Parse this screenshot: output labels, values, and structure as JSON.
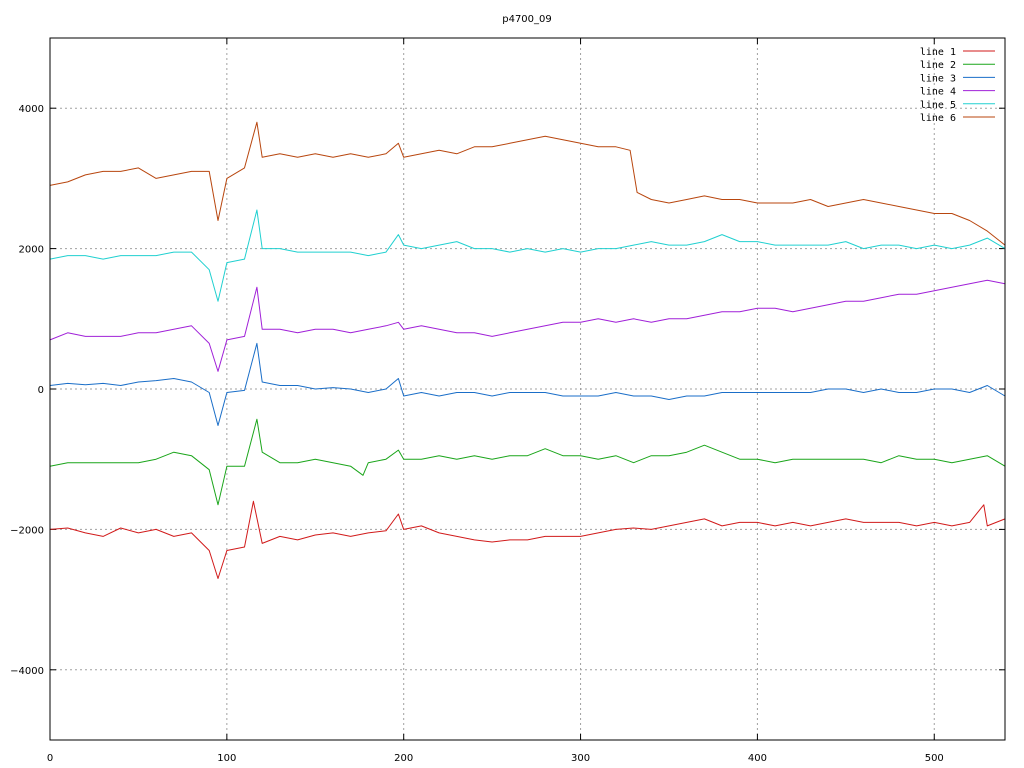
{
  "chart_data": {
    "type": "line",
    "title": "p4700_09",
    "xlabel": "",
    "ylabel": "",
    "xlim": [
      0,
      540
    ],
    "ylim": [
      -5000,
      5000
    ],
    "xticks": [
      0,
      100,
      200,
      300,
      400,
      500
    ],
    "yticks": [
      -4000,
      -2000,
      0,
      2000,
      4000
    ],
    "grid": true,
    "legend_position": "top-right",
    "series": [
      {
        "name": "line 1",
        "color": "#d11a1a",
        "x": [
          0,
          10,
          20,
          30,
          40,
          50,
          60,
          70,
          80,
          90,
          95,
          100,
          110,
          115,
          120,
          130,
          140,
          150,
          160,
          170,
          180,
          190,
          197,
          200,
          210,
          220,
          230,
          240,
          250,
          260,
          270,
          280,
          290,
          300,
          310,
          320,
          330,
          340,
          350,
          360,
          370,
          380,
          390,
          400,
          410,
          420,
          430,
          440,
          450,
          460,
          470,
          480,
          490,
          500,
          510,
          520,
          528,
          530,
          540
        ],
        "y": [
          -2000,
          -1980,
          -2050,
          -2100,
          -1980,
          -2050,
          -2000,
          -2100,
          -2050,
          -2300,
          -2700,
          -2300,
          -2250,
          -1600,
          -2200,
          -2100,
          -2150,
          -2080,
          -2050,
          -2100,
          -2050,
          -2020,
          -1780,
          -2000,
          -1950,
          -2050,
          -2100,
          -2150,
          -2180,
          -2150,
          -2150,
          -2100,
          -2100,
          -2100,
          -2050,
          -2000,
          -1980,
          -2000,
          -1950,
          -1900,
          -1850,
          -1950,
          -1900,
          -1900,
          -1950,
          -1900,
          -1950,
          -1900,
          -1850,
          -1900,
          -1900,
          -1900,
          -1950,
          -1900,
          -1950,
          -1900,
          -1650,
          -1950,
          -1850
        ]
      },
      {
        "name": "line 2",
        "color": "#1aa51a",
        "x": [
          0,
          10,
          20,
          30,
          40,
          50,
          60,
          70,
          80,
          90,
          95,
          100,
          110,
          117,
          120,
          130,
          140,
          150,
          160,
          170,
          177,
          180,
          190,
          197,
          200,
          210,
          220,
          230,
          240,
          250,
          260,
          270,
          280,
          290,
          300,
          310,
          320,
          330,
          340,
          350,
          360,
          370,
          380,
          390,
          400,
          410,
          420,
          430,
          440,
          450,
          460,
          470,
          480,
          490,
          500,
          510,
          520,
          530,
          540
        ],
        "y": [
          -1100,
          -1050,
          -1050,
          -1050,
          -1050,
          -1050,
          -1000,
          -900,
          -950,
          -1150,
          -1650,
          -1100,
          -1100,
          -430,
          -900,
          -1050,
          -1050,
          -1000,
          -1050,
          -1100,
          -1230,
          -1050,
          -1000,
          -870,
          -1000,
          -1000,
          -950,
          -1000,
          -950,
          -1000,
          -950,
          -950,
          -850,
          -950,
          -950,
          -1000,
          -950,
          -1050,
          -950,
          -950,
          -900,
          -800,
          -900,
          -1000,
          -1000,
          -1050,
          -1000,
          -1000,
          -1000,
          -1000,
          -1000,
          -1050,
          -950,
          -1000,
          -1000,
          -1050,
          -1000,
          -950,
          -1100
        ]
      },
      {
        "name": "line 3",
        "color": "#1a6ec8",
        "x": [
          0,
          10,
          20,
          30,
          40,
          50,
          60,
          70,
          80,
          90,
          95,
          100,
          110,
          117,
          120,
          130,
          140,
          150,
          160,
          170,
          180,
          190,
          197,
          200,
          210,
          220,
          230,
          240,
          250,
          260,
          270,
          280,
          290,
          300,
          310,
          320,
          330,
          340,
          350,
          360,
          370,
          380,
          390,
          400,
          410,
          420,
          430,
          440,
          450,
          460,
          470,
          480,
          490,
          500,
          510,
          520,
          530,
          540
        ],
        "y": [
          50,
          80,
          60,
          80,
          50,
          100,
          120,
          150,
          100,
          -50,
          -520,
          -50,
          -20,
          650,
          100,
          50,
          50,
          0,
          20,
          0,
          -50,
          0,
          150,
          -100,
          -50,
          -100,
          -50,
          -50,
          -100,
          -50,
          -50,
          -50,
          -100,
          -100,
          -100,
          -50,
          -100,
          -100,
          -150,
          -100,
          -100,
          -50,
          -50,
          -50,
          -50,
          -50,
          -50,
          0,
          0,
          -50,
          0,
          -50,
          -50,
          0,
          0,
          -50,
          50,
          -100
        ]
      },
      {
        "name": "line 4",
        "color": "#a020d8",
        "x": [
          0,
          10,
          20,
          30,
          40,
          50,
          60,
          70,
          80,
          90,
          95,
          100,
          110,
          117,
          120,
          130,
          140,
          150,
          160,
          170,
          180,
          190,
          197,
          200,
          210,
          220,
          230,
          240,
          250,
          260,
          270,
          280,
          290,
          300,
          310,
          320,
          330,
          340,
          350,
          360,
          370,
          380,
          390,
          400,
          410,
          420,
          430,
          440,
          450,
          460,
          470,
          480,
          490,
          500,
          510,
          520,
          530,
          540
        ],
        "y": [
          700,
          800,
          750,
          750,
          750,
          800,
          800,
          850,
          900,
          650,
          250,
          700,
          750,
          1450,
          850,
          850,
          800,
          850,
          850,
          800,
          850,
          900,
          950,
          850,
          900,
          850,
          800,
          800,
          750,
          800,
          850,
          900,
          950,
          950,
          1000,
          950,
          1000,
          950,
          1000,
          1000,
          1050,
          1100,
          1100,
          1150,
          1150,
          1100,
          1150,
          1200,
          1250,
          1250,
          1300,
          1350,
          1350,
          1400,
          1450,
          1500,
          1550,
          1500
        ]
      },
      {
        "name": "line 5",
        "color": "#20d0d0",
        "x": [
          0,
          10,
          20,
          30,
          40,
          50,
          60,
          70,
          80,
          90,
          95,
          100,
          110,
          117,
          120,
          130,
          140,
          150,
          160,
          170,
          180,
          190,
          197,
          200,
          210,
          220,
          230,
          240,
          250,
          260,
          270,
          280,
          290,
          300,
          310,
          320,
          330,
          340,
          350,
          360,
          370,
          380,
          390,
          400,
          410,
          420,
          430,
          440,
          450,
          460,
          470,
          480,
          490,
          500,
          510,
          520,
          530,
          540
        ],
        "y": [
          1850,
          1900,
          1900,
          1850,
          1900,
          1900,
          1900,
          1950,
          1950,
          1700,
          1250,
          1800,
          1850,
          2550,
          2000,
          2000,
          1950,
          1950,
          1950,
          1950,
          1900,
          1950,
          2200,
          2050,
          2000,
          2050,
          2100,
          2000,
          2000,
          1950,
          2000,
          1950,
          2000,
          1950,
          2000,
          2000,
          2050,
          2100,
          2050,
          2050,
          2100,
          2200,
          2100,
          2100,
          2050,
          2050,
          2050,
          2050,
          2100,
          2000,
          2050,
          2050,
          2000,
          2050,
          2000,
          2050,
          2150,
          2000
        ]
      },
      {
        "name": "line 6",
        "color": "#b8460e",
        "x": [
          0,
          10,
          20,
          30,
          40,
          50,
          60,
          70,
          80,
          90,
          95,
          100,
          110,
          117,
          120,
          130,
          140,
          150,
          160,
          170,
          180,
          190,
          197,
          200,
          210,
          220,
          230,
          240,
          250,
          260,
          270,
          280,
          290,
          300,
          310,
          320,
          328,
          332,
          340,
          350,
          360,
          370,
          380,
          390,
          400,
          410,
          420,
          430,
          440,
          450,
          460,
          470,
          480,
          490,
          500,
          510,
          520,
          530,
          540
        ],
        "y": [
          2900,
          2950,
          3050,
          3100,
          3100,
          3150,
          3000,
          3050,
          3100,
          3100,
          2400,
          3000,
          3150,
          3800,
          3300,
          3350,
          3300,
          3350,
          3300,
          3350,
          3300,
          3350,
          3500,
          3300,
          3350,
          3400,
          3350,
          3450,
          3450,
          3500,
          3550,
          3600,
          3550,
          3500,
          3450,
          3450,
          3400,
          2800,
          2700,
          2650,
          2700,
          2750,
          2700,
          2700,
          2650,
          2650,
          2650,
          2700,
          2600,
          2650,
          2700,
          2650,
          2600,
          2550,
          2500,
          2500,
          2400,
          2250,
          2050
        ]
      }
    ]
  }
}
